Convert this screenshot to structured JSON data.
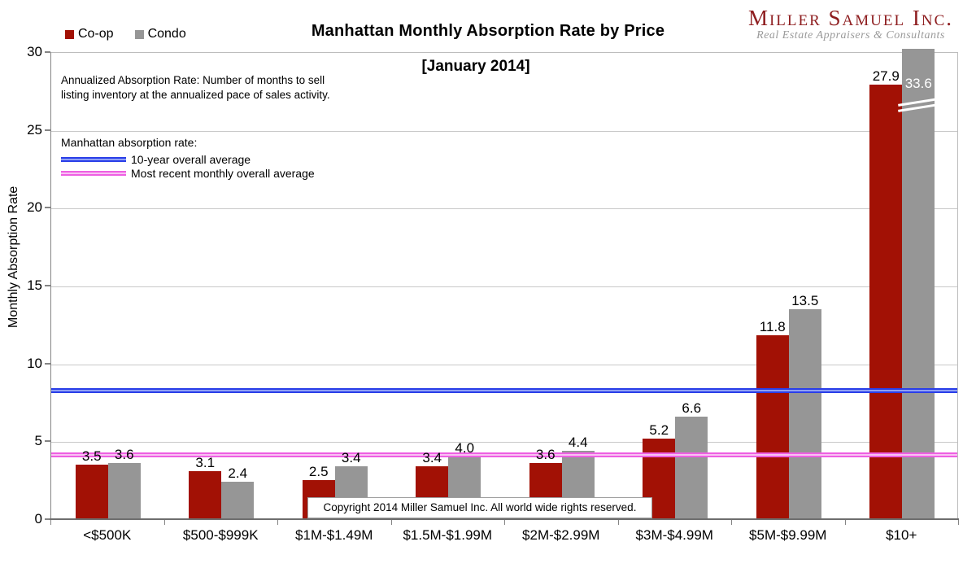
{
  "logo": {
    "name": "Miller Samuel Inc.",
    "tagline": "Real Estate Appraisers & Consultants",
    "brand_color": "#8E1D1F"
  },
  "annotation": {
    "text": "Annualized Absorption Rate: Number of months to sell listing inventory at the annualized pace of sales activity."
  },
  "copyright": "Copyright 2014 Miller Samuel Inc.  All world wide rights reserved.",
  "chart_data": {
    "type": "bar",
    "title": "Manhattan Monthly Absorption Rate by Price",
    "subtitle": "[January 2014]",
    "ylabel": "Monthly Absorption Rate",
    "xlabel": "",
    "ylim": [
      0,
      30
    ],
    "yticks": [
      0,
      5,
      10,
      15,
      20,
      25,
      30
    ],
    "grid": true,
    "legend_position": "top-left",
    "categories": [
      "<$500K",
      "$500-$999K",
      "$1M-$1.49M",
      "$1.5M-$1.99M",
      "$2M-$2.99M",
      "$3M-$4.99M",
      "$5M-$9.99M",
      "$10+"
    ],
    "series": [
      {
        "name": "Co-op",
        "color": "#A21105",
        "values": [
          3.5,
          3.1,
          2.5,
          3.4,
          3.6,
          5.2,
          11.8,
          27.9
        ]
      },
      {
        "name": "Condo",
        "color": "#969696",
        "values": [
          3.6,
          2.4,
          3.4,
          4.0,
          4.4,
          6.6,
          13.5,
          33.6
        ]
      }
    ],
    "reference_lines": [
      {
        "label": "10-year overall average",
        "value": 8.3,
        "band": [
          "#2A3EE8",
          "#8FA0F5"
        ]
      },
      {
        "label": "Most recent monthly overall average",
        "value": 4.2,
        "band": [
          "#EE5FE2",
          "#F9C2F3"
        ]
      }
    ],
    "reference_heading": "Manhattan absorption rate:",
    "clipped_bar": {
      "series": "Condo",
      "category": "$10+",
      "displayed_value": 33.6,
      "note": "bar clipped at top of axis with white break marks"
    }
  }
}
